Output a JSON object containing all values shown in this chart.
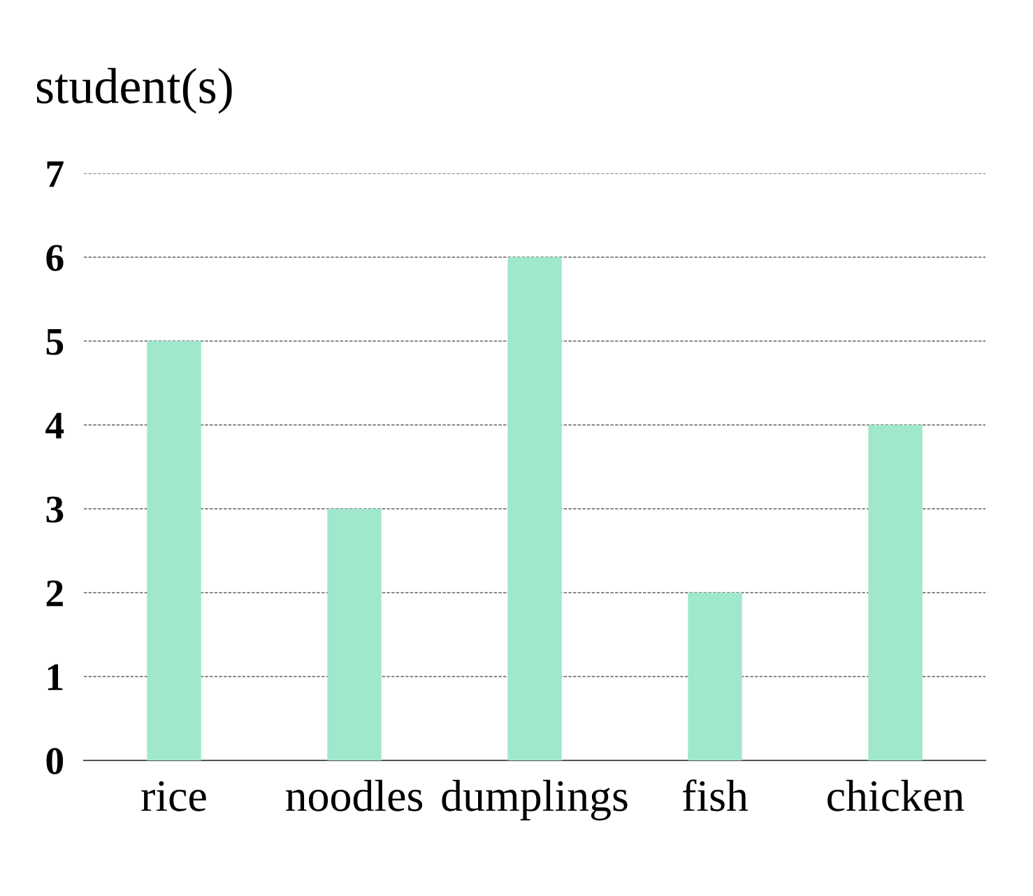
{
  "chart_data": {
    "type": "bar",
    "ylabel": "student(s)",
    "categories": [
      "rice",
      "noodles",
      "dumplings",
      "fish",
      "chicken"
    ],
    "values": [
      5,
      3,
      6,
      2,
      4
    ],
    "color": "#9fe8cc",
    "ylim": [
      0,
      7
    ],
    "yticks": [
      0,
      1,
      2,
      3,
      4,
      5,
      6,
      7
    ],
    "grid": "y"
  }
}
